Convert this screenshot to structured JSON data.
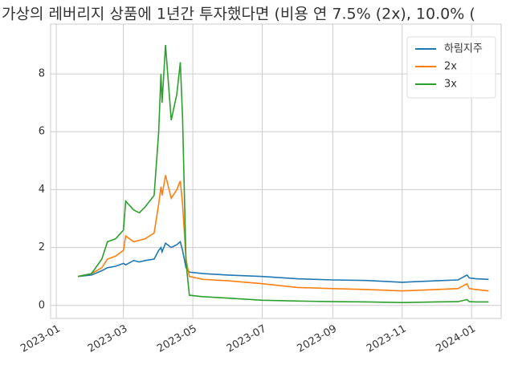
{
  "chart_data": {
    "type": "line",
    "title": "가상의 레버리지 상품에 1년간 투자했다면 (비용 연 7.5% (2x), 10.0% (",
    "x": [
      "2023-01-20",
      "2023-02-01",
      "2023-02-10",
      "2023-02-15",
      "2023-02-22",
      "2023-03-01",
      "2023-03-03",
      "2023-03-10",
      "2023-03-15",
      "2023-03-20",
      "2023-03-28",
      "2023-04-01",
      "2023-04-03",
      "2023-04-04",
      "2023-04-07",
      "2023-04-12",
      "2023-04-17",
      "2023-04-20",
      "2023-04-22",
      "2023-04-25",
      "2023-04-28",
      "2023-05-10",
      "2023-06-01",
      "2023-07-01",
      "2023-08-01",
      "2023-09-01",
      "2023-10-01",
      "2023-11-01",
      "2023-12-01",
      "2023-12-20",
      "2023-12-28",
      "2023-12-30",
      "2024-01-05",
      "2024-01-16"
    ],
    "series": [
      {
        "name": "하림지주",
        "color": "#1f77b4",
        "values": [
          1.0,
          1.05,
          1.2,
          1.3,
          1.35,
          1.45,
          1.4,
          1.55,
          1.5,
          1.55,
          1.6,
          1.9,
          2.0,
          1.85,
          2.15,
          2.0,
          2.1,
          2.2,
          1.9,
          1.3,
          1.15,
          1.1,
          1.05,
          1.0,
          0.92,
          0.88,
          0.86,
          0.8,
          0.85,
          0.88,
          1.05,
          0.95,
          0.92,
          0.9
        ]
      },
      {
        "name": "2x",
        "color": "#ff7f0e",
        "values": [
          1.0,
          1.1,
          1.3,
          1.6,
          1.7,
          1.9,
          2.4,
          2.2,
          2.25,
          2.3,
          2.5,
          3.5,
          4.1,
          3.8,
          4.5,
          3.7,
          4.0,
          4.3,
          3.5,
          1.6,
          1.0,
          0.9,
          0.85,
          0.75,
          0.62,
          0.58,
          0.55,
          0.5,
          0.55,
          0.58,
          0.75,
          0.58,
          0.55,
          0.5
        ]
      },
      {
        "name": "3x",
        "color": "#2ca02c",
        "values": [
          1.0,
          1.1,
          1.6,
          2.2,
          2.3,
          2.6,
          3.6,
          3.3,
          3.2,
          3.4,
          3.8,
          6.0,
          8.0,
          7.0,
          9.0,
          6.4,
          7.3,
          8.4,
          6.5,
          1.5,
          0.35,
          0.3,
          0.25,
          0.18,
          0.15,
          0.13,
          0.12,
          0.1,
          0.12,
          0.13,
          0.2,
          0.13,
          0.12,
          0.12
        ]
      }
    ],
    "xlim": [
      "2022-12-27",
      "2024-01-27"
    ],
    "xticks": [
      {
        "value": "2023-01-01",
        "label": "2023-01"
      },
      {
        "value": "2023-03-01",
        "label": "2023-03"
      },
      {
        "value": "2023-05-01",
        "label": "2023-05"
      },
      {
        "value": "2023-07-01",
        "label": "2023-07"
      },
      {
        "value": "2023-09-01",
        "label": "2023-09"
      },
      {
        "value": "2023-11-01",
        "label": "2023-11"
      },
      {
        "value": "2024-01-01",
        "label": "2024-01"
      }
    ],
    "ylim": [
      -0.45,
      9.72
    ],
    "yticks": [
      0,
      2,
      4,
      6,
      8
    ],
    "grid": true,
    "legend": "upper right"
  }
}
